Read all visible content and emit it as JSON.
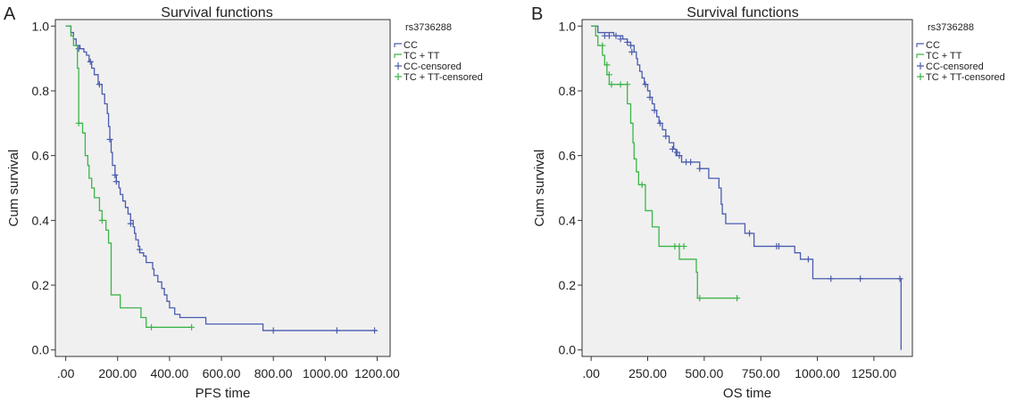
{
  "chart_data": [
    {
      "type": "line",
      "panel_label": "A",
      "title": "Survival functions",
      "xlabel": "PFS time",
      "ylabel": "Cum survival",
      "xlim": [
        -40,
        1250
      ],
      "ylim": [
        -0.02,
        1.02
      ],
      "x_ticks": [
        0,
        200,
        400,
        600,
        800,
        1000,
        1200
      ],
      "x_tick_labels": [
        ".00",
        "200.00",
        "400.00",
        "600.00",
        "800.00",
        "1000.00",
        "1200.00"
      ],
      "y_ticks": [
        0,
        0.2,
        0.4,
        0.6,
        0.8,
        1.0
      ],
      "y_tick_labels": [
        "0.0",
        "0.2",
        "0.4",
        "0.6",
        "0.8",
        "1.0"
      ],
      "legend_title": "rs3736288",
      "legend_position": "right",
      "legend": [
        "CC",
        "TC + TT",
        "CC-censored",
        "TC + TT-censored"
      ],
      "series": [
        {
          "name": "CC",
          "color": "#4a5cae",
          "steps": [
            [
              0,
              1.0
            ],
            [
              20,
              0.98
            ],
            [
              30,
              0.96
            ],
            [
              40,
              0.94
            ],
            [
              55,
              0.93
            ],
            [
              70,
              0.92
            ],
            [
              80,
              0.91
            ],
            [
              90,
              0.89
            ],
            [
              100,
              0.87
            ],
            [
              110,
              0.85
            ],
            [
              125,
              0.82
            ],
            [
              140,
              0.79
            ],
            [
              150,
              0.76
            ],
            [
              160,
              0.73
            ],
            [
              165,
              0.69
            ],
            [
              170,
              0.65
            ],
            [
              175,
              0.61
            ],
            [
              180,
              0.57
            ],
            [
              190,
              0.54
            ],
            [
              195,
              0.52
            ],
            [
              205,
              0.5
            ],
            [
              210,
              0.48
            ],
            [
              220,
              0.46
            ],
            [
              230,
              0.44
            ],
            [
              240,
              0.42
            ],
            [
              250,
              0.4
            ],
            [
              260,
              0.38
            ],
            [
              265,
              0.36
            ],
            [
              270,
              0.34
            ],
            [
              280,
              0.32
            ],
            [
              285,
              0.3
            ],
            [
              300,
              0.29
            ],
            [
              310,
              0.27
            ],
            [
              335,
              0.25
            ],
            [
              340,
              0.23
            ],
            [
              355,
              0.21
            ],
            [
              370,
              0.19
            ],
            [
              380,
              0.17
            ],
            [
              390,
              0.15
            ],
            [
              400,
              0.13
            ],
            [
              420,
              0.11
            ],
            [
              440,
              0.1
            ],
            [
              540,
              0.08
            ],
            [
              760,
              0.06
            ],
            [
              1200,
              0.06
            ]
          ],
          "censored": [
            [
              50,
              0.93
            ],
            [
              95,
              0.89
            ],
            [
              130,
              0.82
            ],
            [
              170,
              0.65
            ],
            [
              190,
              0.54
            ],
            [
              195,
              0.52
            ],
            [
              250,
              0.39
            ],
            [
              285,
              0.31
            ],
            [
              800,
              0.06
            ],
            [
              1045,
              0.06
            ],
            [
              1190,
              0.06
            ]
          ]
        },
        {
          "name": "TC + TT",
          "color": "#3cb54a",
          "steps": [
            [
              0,
              1.0
            ],
            [
              20,
              0.97
            ],
            [
              30,
              0.94
            ],
            [
              45,
              0.87
            ],
            [
              50,
              0.7
            ],
            [
              65,
              0.67
            ],
            [
              75,
              0.6
            ],
            [
              85,
              0.57
            ],
            [
              90,
              0.53
            ],
            [
              100,
              0.5
            ],
            [
              110,
              0.47
            ],
            [
              130,
              0.43
            ],
            [
              140,
              0.4
            ],
            [
              155,
              0.37
            ],
            [
              165,
              0.33
            ],
            [
              175,
              0.17
            ],
            [
              210,
              0.13
            ],
            [
              290,
              0.1
            ],
            [
              310,
              0.07
            ],
            [
              485,
              0.07
            ]
          ],
          "censored": [
            [
              50,
              0.7
            ],
            [
              140,
              0.4
            ],
            [
              330,
              0.07
            ],
            [
              485,
              0.07
            ]
          ]
        }
      ]
    },
    {
      "type": "line",
      "panel_label": "B",
      "title": "Survival functions",
      "xlabel": "OS time",
      "ylabel": "Cum survival",
      "xlim": [
        -40,
        1420
      ],
      "ylim": [
        -0.02,
        1.02
      ],
      "x_ticks": [
        0,
        250,
        500,
        750,
        1000,
        1250
      ],
      "x_tick_labels": [
        ".00",
        "250.00",
        "500.00",
        "750.00",
        "1000.00",
        "1250.00"
      ],
      "y_ticks": [
        0,
        0.2,
        0.4,
        0.6,
        0.8,
        1.0
      ],
      "y_tick_labels": [
        "0.0",
        "0.2",
        "0.4",
        "0.6",
        "0.8",
        "1.0"
      ],
      "legend_title": "rs3736288",
      "legend_position": "right",
      "legend": [
        "CC",
        "TC + TT",
        "CC-censored",
        "TC + TT-censored"
      ],
      "series": [
        {
          "name": "CC",
          "color": "#4a5cae",
          "steps": [
            [
              0,
              1.0
            ],
            [
              30,
              0.98
            ],
            [
              100,
              0.97
            ],
            [
              140,
              0.96
            ],
            [
              160,
              0.95
            ],
            [
              175,
              0.94
            ],
            [
              190,
              0.92
            ],
            [
              200,
              0.9
            ],
            [
              205,
              0.88
            ],
            [
              215,
              0.86
            ],
            [
              225,
              0.84
            ],
            [
              235,
              0.82
            ],
            [
              250,
              0.8
            ],
            [
              260,
              0.78
            ],
            [
              270,
              0.76
            ],
            [
              280,
              0.74
            ],
            [
              290,
              0.72
            ],
            [
              300,
              0.7
            ],
            [
              315,
              0.68
            ],
            [
              330,
              0.66
            ],
            [
              345,
              0.64
            ],
            [
              365,
              0.62
            ],
            [
              375,
              0.6
            ],
            [
              400,
              0.58
            ],
            [
              480,
              0.56
            ],
            [
              520,
              0.53
            ],
            [
              565,
              0.5
            ],
            [
              575,
              0.45
            ],
            [
              580,
              0.42
            ],
            [
              595,
              0.39
            ],
            [
              680,
              0.36
            ],
            [
              720,
              0.32
            ],
            [
              900,
              0.3
            ],
            [
              925,
              0.28
            ],
            [
              980,
              0.22
            ],
            [
              1370,
              0.22
            ],
            [
              1370,
              0.0
            ]
          ],
          "censored": [
            [
              60,
              0.97
            ],
            [
              80,
              0.97
            ],
            [
              110,
              0.97
            ],
            [
              130,
              0.96
            ],
            [
              160,
              0.95
            ],
            [
              175,
              0.94
            ],
            [
              180,
              0.92
            ],
            [
              240,
              0.82
            ],
            [
              260,
              0.78
            ],
            [
              280,
              0.74
            ],
            [
              305,
              0.7
            ],
            [
              330,
              0.66
            ],
            [
              360,
              0.62
            ],
            [
              380,
              0.61
            ],
            [
              390,
              0.6
            ],
            [
              420,
              0.58
            ],
            [
              440,
              0.58
            ],
            [
              480,
              0.56
            ],
            [
              700,
              0.36
            ],
            [
              820,
              0.32
            ],
            [
              830,
              0.32
            ],
            [
              960,
              0.28
            ],
            [
              1060,
              0.22
            ],
            [
              1190,
              0.22
            ],
            [
              1365,
              0.22
            ]
          ]
        },
        {
          "name": "TC + TT",
          "color": "#3cb54a",
          "steps": [
            [
              0,
              1.0
            ],
            [
              20,
              0.97
            ],
            [
              30,
              0.94
            ],
            [
              50,
              0.91
            ],
            [
              60,
              0.88
            ],
            [
              70,
              0.85
            ],
            [
              80,
              0.82
            ],
            [
              160,
              0.76
            ],
            [
              175,
              0.7
            ],
            [
              185,
              0.64
            ],
            [
              190,
              0.59
            ],
            [
              200,
              0.55
            ],
            [
              210,
              0.51
            ],
            [
              240,
              0.43
            ],
            [
              270,
              0.38
            ],
            [
              300,
              0.32
            ],
            [
              390,
              0.28
            ],
            [
              465,
              0.24
            ],
            [
              470,
              0.16
            ],
            [
              645,
              0.16
            ]
          ],
          "censored": [
            [
              50,
              0.94
            ],
            [
              70,
              0.88
            ],
            [
              80,
              0.85
            ],
            [
              90,
              0.82
            ],
            [
              130,
              0.82
            ],
            [
              160,
              0.82
            ],
            [
              225,
              0.51
            ],
            [
              370,
              0.32
            ],
            [
              390,
              0.32
            ],
            [
              410,
              0.32
            ],
            [
              480,
              0.16
            ],
            [
              645,
              0.16
            ]
          ]
        }
      ]
    }
  ]
}
